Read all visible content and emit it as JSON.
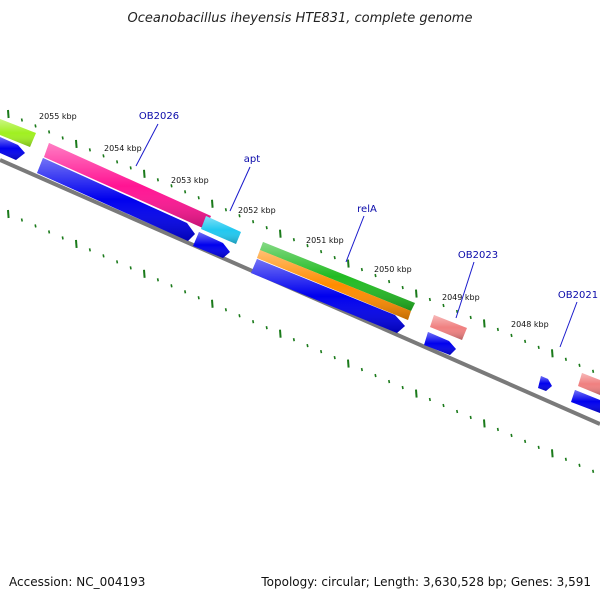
{
  "title": "Oceanobacillus iheyensis HTE831, complete genome",
  "footer": {
    "accession": "Accession: NC_004193",
    "topology": "Topology: circular; Length: 3,630,528 bp; Genes: 3,591"
  },
  "colors": {
    "backbone": "#7a7a7a",
    "tick": "#1a7a1a",
    "gene_label": "#0a0aaa",
    "leader": "#1a1acc"
  },
  "tick_labels": [
    "2055 kbp",
    "2054 kbp",
    "2053 kbp",
    "2052 kbp",
    "2051 kbp",
    "2050 kbp",
    "2049 kbp",
    "2048 kbp"
  ],
  "gene_labels": [
    "OB2026",
    "apt",
    "relA",
    "OB2023",
    "OB2021"
  ],
  "features": [
    {
      "name": "lime-gene-bar",
      "color": "#a0f020"
    },
    {
      "name": "ob2026-gene-bar",
      "color": "#ff1493"
    },
    {
      "name": "apt-gene-bar",
      "color": "#20c8f0"
    },
    {
      "name": "rela-green-gene-bar",
      "color": "#22bb22"
    },
    {
      "name": "rela-orange-gene-bar",
      "color": "#ff8c00"
    },
    {
      "name": "ob2023-gene-bar",
      "color": "#f08080"
    },
    {
      "name": "ob2021-gene-bar",
      "color": "#f08080"
    },
    {
      "name": "cds-arrow",
      "color": "#0000ee"
    }
  ]
}
